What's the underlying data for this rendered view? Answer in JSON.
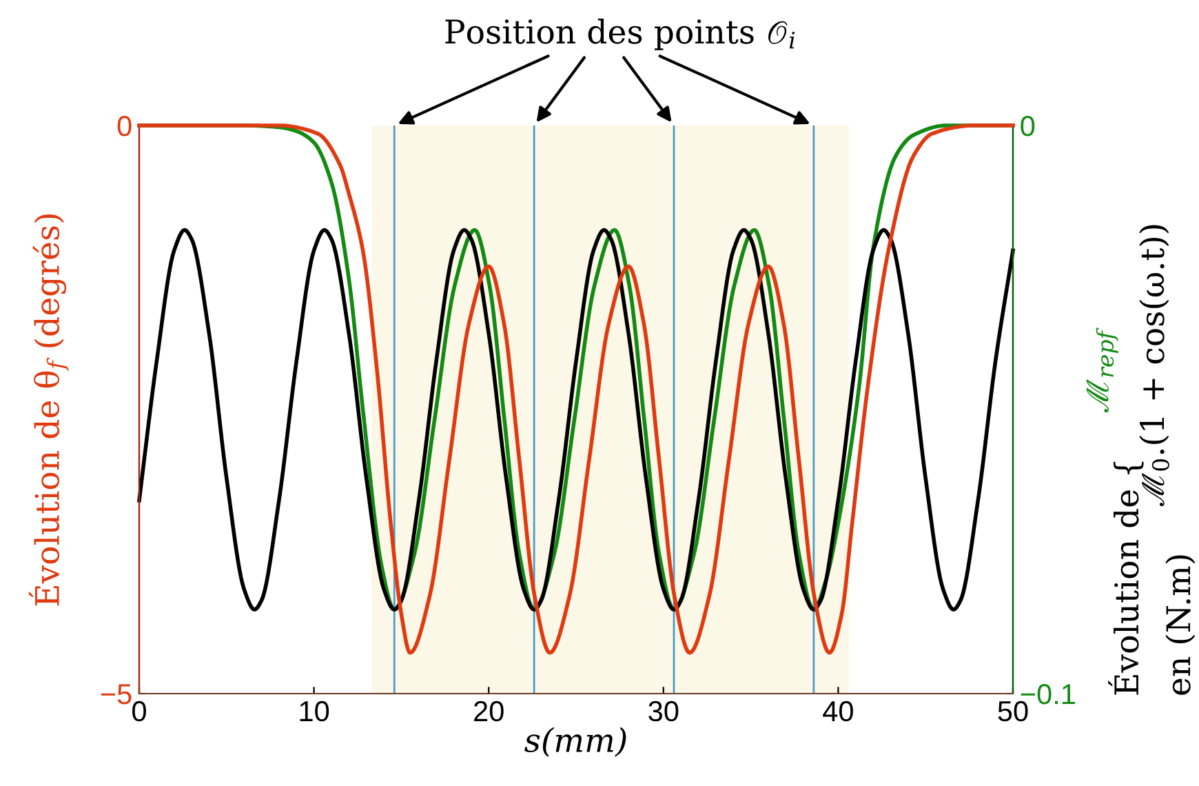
{
  "chart_data": {
    "type": "line",
    "xlabel": "s(mm)",
    "ylabel": "Évolution de θ$_{f}$ (degrés)",
    "y2label": "Évolution de {\nen (N.m)",
    "xlim": [
      0,
      50
    ],
    "xticks": [
      0,
      10,
      20,
      30,
      40,
      50
    ],
    "ylim": [
      -5,
      0
    ],
    "yticks": [
      {
        "value": -5,
        "label": "−5"
      },
      0
    ],
    "y2lim": [
      -0.1,
      0
    ],
    "y2ticks": [
      {
        "value": -0.1,
        "label": "−0.1"
      },
      0
    ],
    "grid": false,
    "legend": false,
    "marker": "none",
    "line_style": "solid",
    "annotations": [
      "Position des points 𝒪$_{i}$"
    ],
    "bands": [
      {
        "axis": "x",
        "from": 13.3,
        "to": 40.6,
        "color": "#fcf8e8"
      }
    ],
    "ref_lines": [
      {
        "axis": "x",
        "value": 14.6,
        "color": "#4a9cc8"
      },
      {
        "axis": "x",
        "value": 22.6,
        "color": "#4a9cc8"
      },
      {
        "axis": "x",
        "value": 30.6,
        "color": "#4a9cc8"
      },
      {
        "axis": "x",
        "value": 38.6,
        "color": "#4a9cc8"
      }
    ],
    "series": [
      {
        "color": "#e03a10",
        "axis": "y",
        "x": [
          0,
          8,
          10.2,
          11.5,
          12,
          12.8,
          13.6,
          14.4,
          15,
          15.5,
          16.625,
          17.75,
          18.875,
          20,
          20.875,
          21.75,
          22.625,
          23.5,
          24.625,
          25.75,
          26.875,
          28,
          28.875,
          29.75,
          30.625,
          31.5,
          32.625,
          33.75,
          34.875,
          36,
          36.875,
          37.75,
          38.625,
          39.5,
          40.2,
          40.8,
          41.7,
          42.9,
          44.3,
          45.4,
          47.8,
          50
        ],
        "values": [
          0,
          0,
          -0.07,
          -0.35,
          -0.6,
          -1.1,
          -2.14,
          -3.51,
          -4.3,
          -4.64,
          -4.14,
          -2.94,
          -1.74,
          -1.24,
          -1.74,
          -2.94,
          -4.14,
          -4.64,
          -4.14,
          -2.94,
          -1.74,
          -1.24,
          -1.74,
          -2.94,
          -4.14,
          -4.64,
          -4.14,
          -2.94,
          -1.74,
          -1.24,
          -1.74,
          -2.94,
          -4.14,
          -4.64,
          -4.3,
          -3.5,
          -2.29,
          -1.08,
          -0.27,
          -0.07,
          0,
          0
        ]
      },
      {
        "name": "ℳ$_{repf}$",
        "color": "#138a13",
        "axis": "y2",
        "x": [
          0,
          6,
          8,
          9,
          10,
          11,
          12,
          12.8,
          13.9,
          14.6,
          15.75,
          16.9,
          18.05,
          19.2,
          20.05,
          20.9,
          21.75,
          22.6,
          23.75,
          24.9,
          26.05,
          27.2,
          28.05,
          28.9,
          29.75,
          30.6,
          31.75,
          32.9,
          34.05,
          35.2,
          36.05,
          36.9,
          37.75,
          38.6,
          39.3,
          40.0,
          41.2,
          42.0,
          43.3,
          44.3,
          46.2,
          50
        ],
        "values": [
          0,
          0,
          -0.0003,
          -0.001,
          -0.003,
          -0.01,
          -0.027,
          -0.05,
          -0.078,
          -0.0852,
          -0.0754,
          -0.0518,
          -0.0282,
          -0.0184,
          -0.0282,
          -0.0518,
          -0.0754,
          -0.0852,
          -0.0754,
          -0.0518,
          -0.0282,
          -0.0184,
          -0.0282,
          -0.0518,
          -0.0754,
          -0.0852,
          -0.0754,
          -0.0518,
          -0.0282,
          -0.0184,
          -0.0282,
          -0.0518,
          -0.0754,
          -0.0852,
          -0.08,
          -0.07,
          -0.0459,
          -0.0216,
          -0.0053,
          -0.0017,
          0,
          0
        ]
      },
      {
        "name": "ℳ$_{0}$.(1 + cos(ω.t))",
        "color": "#000000",
        "axis": "y2",
        "x": [
          0,
          1,
          2,
          2.6,
          3,
          4,
          5,
          6,
          6.6,
          7,
          8,
          9,
          10,
          10.6,
          11,
          12,
          13,
          14,
          14.6,
          15,
          16,
          17,
          18,
          18.6,
          19,
          20,
          21,
          22,
          22.6,
          23,
          24,
          25,
          26,
          26.6,
          27,
          28,
          29,
          30,
          30.6,
          31,
          32,
          33,
          34,
          34.6,
          35,
          36,
          37,
          38,
          38.6,
          39,
          40,
          41,
          42,
          42.6,
          43,
          44,
          45,
          46,
          46.6,
          47,
          48,
          49,
          50
        ],
        "values": [
          -0.066,
          -0.0415,
          -0.022,
          -0.0184,
          -0.02,
          -0.0366,
          -0.0621,
          -0.0816,
          -0.0852,
          -0.0836,
          -0.066,
          -0.0415,
          -0.022,
          -0.0184,
          -0.02,
          -0.0366,
          -0.0621,
          -0.0816,
          -0.0852,
          -0.0836,
          -0.066,
          -0.0415,
          -0.022,
          -0.0184,
          -0.02,
          -0.0366,
          -0.0621,
          -0.0816,
          -0.0852,
          -0.0836,
          -0.066,
          -0.0415,
          -0.022,
          -0.0184,
          -0.02,
          -0.0366,
          -0.0621,
          -0.0816,
          -0.0852,
          -0.0836,
          -0.066,
          -0.0415,
          -0.022,
          -0.0184,
          -0.02,
          -0.0366,
          -0.0621,
          -0.0816,
          -0.0852,
          -0.0836,
          -0.066,
          -0.0415,
          -0.022,
          -0.0184,
          -0.02,
          -0.0366,
          -0.0621,
          -0.0816,
          -0.0852,
          -0.0836,
          -0.066,
          -0.0415,
          -0.022
        ]
      }
    ]
  }
}
